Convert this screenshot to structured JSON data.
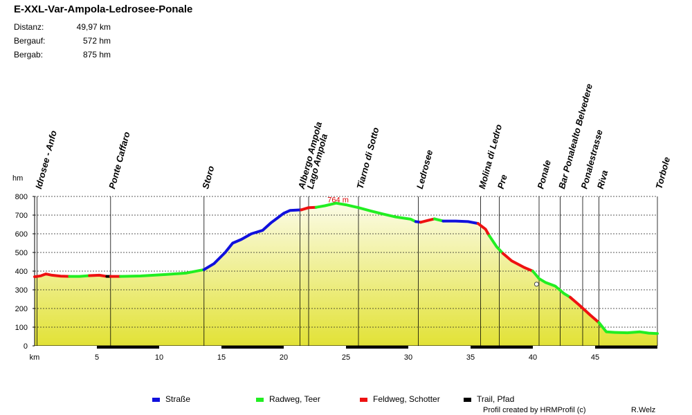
{
  "title": "E-XXL-Var-Ampola-Ledrosee-Ponale",
  "stats": [
    {
      "label": "Distanz:",
      "value": "49,97 km"
    },
    {
      "label": "Bergauf:",
      "value": "572 hm"
    },
    {
      "label": "Bergab:",
      "value": "875 hm"
    }
  ],
  "colors": {
    "strasse": "#1010dd",
    "radweg": "#22ee22",
    "feldweg": "#ee1111",
    "trail": "#000000",
    "fill_top": "#fbfbe6",
    "fill_bottom": "#e2e236"
  },
  "legend": [
    {
      "label": "Straße",
      "color": "#1010dd"
    },
    {
      "label": "Radweg, Teer",
      "color": "#22ee22"
    },
    {
      "label": "Feldweg, Schotter",
      "color": "#ee1111"
    },
    {
      "label": "Trail, Pfad",
      "color": "#000000"
    }
  ],
  "footer": {
    "credit": "Profil created by HRMProfil (c)",
    "author": "R.Welz"
  },
  "chart_data": {
    "type": "area",
    "title": "",
    "xlabel": "km",
    "ylabel": "hm",
    "xlim": [
      0,
      50
    ],
    "ylim": [
      0,
      800
    ],
    "x_ticks": [
      "5",
      "10",
      "15",
      "20",
      "25",
      "30",
      "35",
      "40",
      "45"
    ],
    "y_ticks": [
      "0",
      "100",
      "200",
      "300",
      "400",
      "500",
      "600",
      "700",
      "800"
    ],
    "grid": true,
    "peak_label": "764 m",
    "peak": {
      "x": 24.2,
      "y": 764
    },
    "marker": {
      "x": 40.3,
      "y": 330
    },
    "waypoints": [
      {
        "name": "Idrosee - Anfo",
        "x": 0.2
      },
      {
        "name": "Ponte Caffaro",
        "x": 6.1
      },
      {
        "name": "Storo",
        "x": 13.6
      },
      {
        "name": "Albergo Ampola",
        "x": 21.3
      },
      {
        "name": "Lago Ampola",
        "x": 22.0
      },
      {
        "name": "Tiarno di Sotto",
        "x": 26.0
      },
      {
        "name": "Ledrosee",
        "x": 30.8
      },
      {
        "name": "Molina di Ledro",
        "x": 35.8
      },
      {
        "name": "Pre",
        "x": 37.3
      },
      {
        "name": "Ponale",
        "x": 40.5
      },
      {
        "name": "Bar Ponalealto Belvedere",
        "x": 42.2
      },
      {
        "name": "Ponalestrasse",
        "x": 44.0
      },
      {
        "name": "Riva",
        "x": 45.3
      },
      {
        "name": "Torbole",
        "x": 50.0
      }
    ],
    "series": [
      {
        "surface": "feldweg",
        "points": [
          [
            0,
            370
          ],
          [
            0.5,
            375
          ],
          [
            0.9,
            385
          ],
          [
            1.4,
            378
          ],
          [
            2.1,
            373
          ],
          [
            2.8,
            372
          ]
        ]
      },
      {
        "surface": "radweg",
        "points": [
          [
            2.8,
            372
          ],
          [
            3.6,
            372
          ],
          [
            4.4,
            376
          ]
        ]
      },
      {
        "surface": "feldweg",
        "points": [
          [
            4.4,
            376
          ],
          [
            5.2,
            378
          ],
          [
            5.8,
            372
          ]
        ]
      },
      {
        "surface": "trail",
        "points": [
          [
            5.8,
            372
          ],
          [
            6.1,
            372
          ]
        ]
      },
      {
        "surface": "feldweg",
        "points": [
          [
            6.1,
            372
          ],
          [
            6.9,
            372
          ]
        ]
      },
      {
        "surface": "radweg",
        "points": [
          [
            6.9,
            372
          ],
          [
            8.5,
            374
          ],
          [
            10.5,
            382
          ],
          [
            12.2,
            390
          ],
          [
            13.6,
            408
          ]
        ]
      },
      {
        "surface": "strasse",
        "points": [
          [
            13.6,
            408
          ],
          [
            14.4,
            440
          ],
          [
            15.3,
            500
          ],
          [
            15.9,
            550
          ],
          [
            16.6,
            570
          ],
          [
            17.4,
            600
          ],
          [
            18.3,
            618
          ],
          [
            19.0,
            660
          ],
          [
            19.5,
            685
          ],
          [
            20.0,
            710
          ],
          [
            20.5,
            725
          ],
          [
            21.4,
            728
          ]
        ]
      },
      {
        "surface": "feldweg",
        "points": [
          [
            21.4,
            728
          ],
          [
            22.0,
            740
          ],
          [
            22.6,
            742
          ]
        ]
      },
      {
        "surface": "radweg",
        "points": [
          [
            22.6,
            742
          ],
          [
            23.3,
            750
          ],
          [
            24.2,
            764
          ],
          [
            25.0,
            755
          ],
          [
            26.0,
            740
          ],
          [
            27.0,
            722
          ],
          [
            28.0,
            705
          ],
          [
            29.0,
            690
          ],
          [
            30.2,
            678
          ],
          [
            30.6,
            665
          ]
        ]
      },
      {
        "surface": "strasse",
        "points": [
          [
            30.6,
            665
          ],
          [
            31.0,
            662
          ]
        ]
      },
      {
        "surface": "feldweg",
        "points": [
          [
            31.0,
            662
          ],
          [
            31.6,
            672
          ],
          [
            32.1,
            680
          ]
        ]
      },
      {
        "surface": "radweg",
        "points": [
          [
            32.1,
            680
          ],
          [
            32.8,
            668
          ]
        ]
      },
      {
        "surface": "strasse",
        "points": [
          [
            32.8,
            668
          ],
          [
            33.8,
            668
          ],
          [
            34.8,
            665
          ],
          [
            35.6,
            655
          ]
        ]
      },
      {
        "surface": "feldweg",
        "points": [
          [
            35.6,
            655
          ],
          [
            36.2,
            625
          ],
          [
            36.5,
            590
          ]
        ]
      },
      {
        "surface": "radweg",
        "points": [
          [
            36.5,
            590
          ],
          [
            37.1,
            530
          ],
          [
            37.6,
            495
          ]
        ]
      },
      {
        "surface": "feldweg",
        "points": [
          [
            37.6,
            495
          ],
          [
            38.3,
            455
          ],
          [
            39.3,
            420
          ],
          [
            40.0,
            400
          ]
        ]
      },
      {
        "surface": "radweg",
        "points": [
          [
            40.0,
            400
          ],
          [
            40.5,
            360
          ],
          [
            41.0,
            340
          ],
          [
            41.8,
            320
          ],
          [
            42.5,
            280
          ],
          [
            43.0,
            260
          ]
        ]
      },
      {
        "surface": "feldweg",
        "points": [
          [
            43.0,
            260
          ],
          [
            43.7,
            220
          ],
          [
            44.6,
            165
          ],
          [
            45.3,
            125
          ]
        ]
      },
      {
        "surface": "radweg",
        "points": [
          [
            45.3,
            125
          ],
          [
            45.9,
            75
          ],
          [
            46.6,
            72
          ],
          [
            47.6,
            70
          ],
          [
            48.6,
            75
          ],
          [
            49.3,
            68
          ],
          [
            50.0,
            66
          ]
        ]
      }
    ]
  }
}
